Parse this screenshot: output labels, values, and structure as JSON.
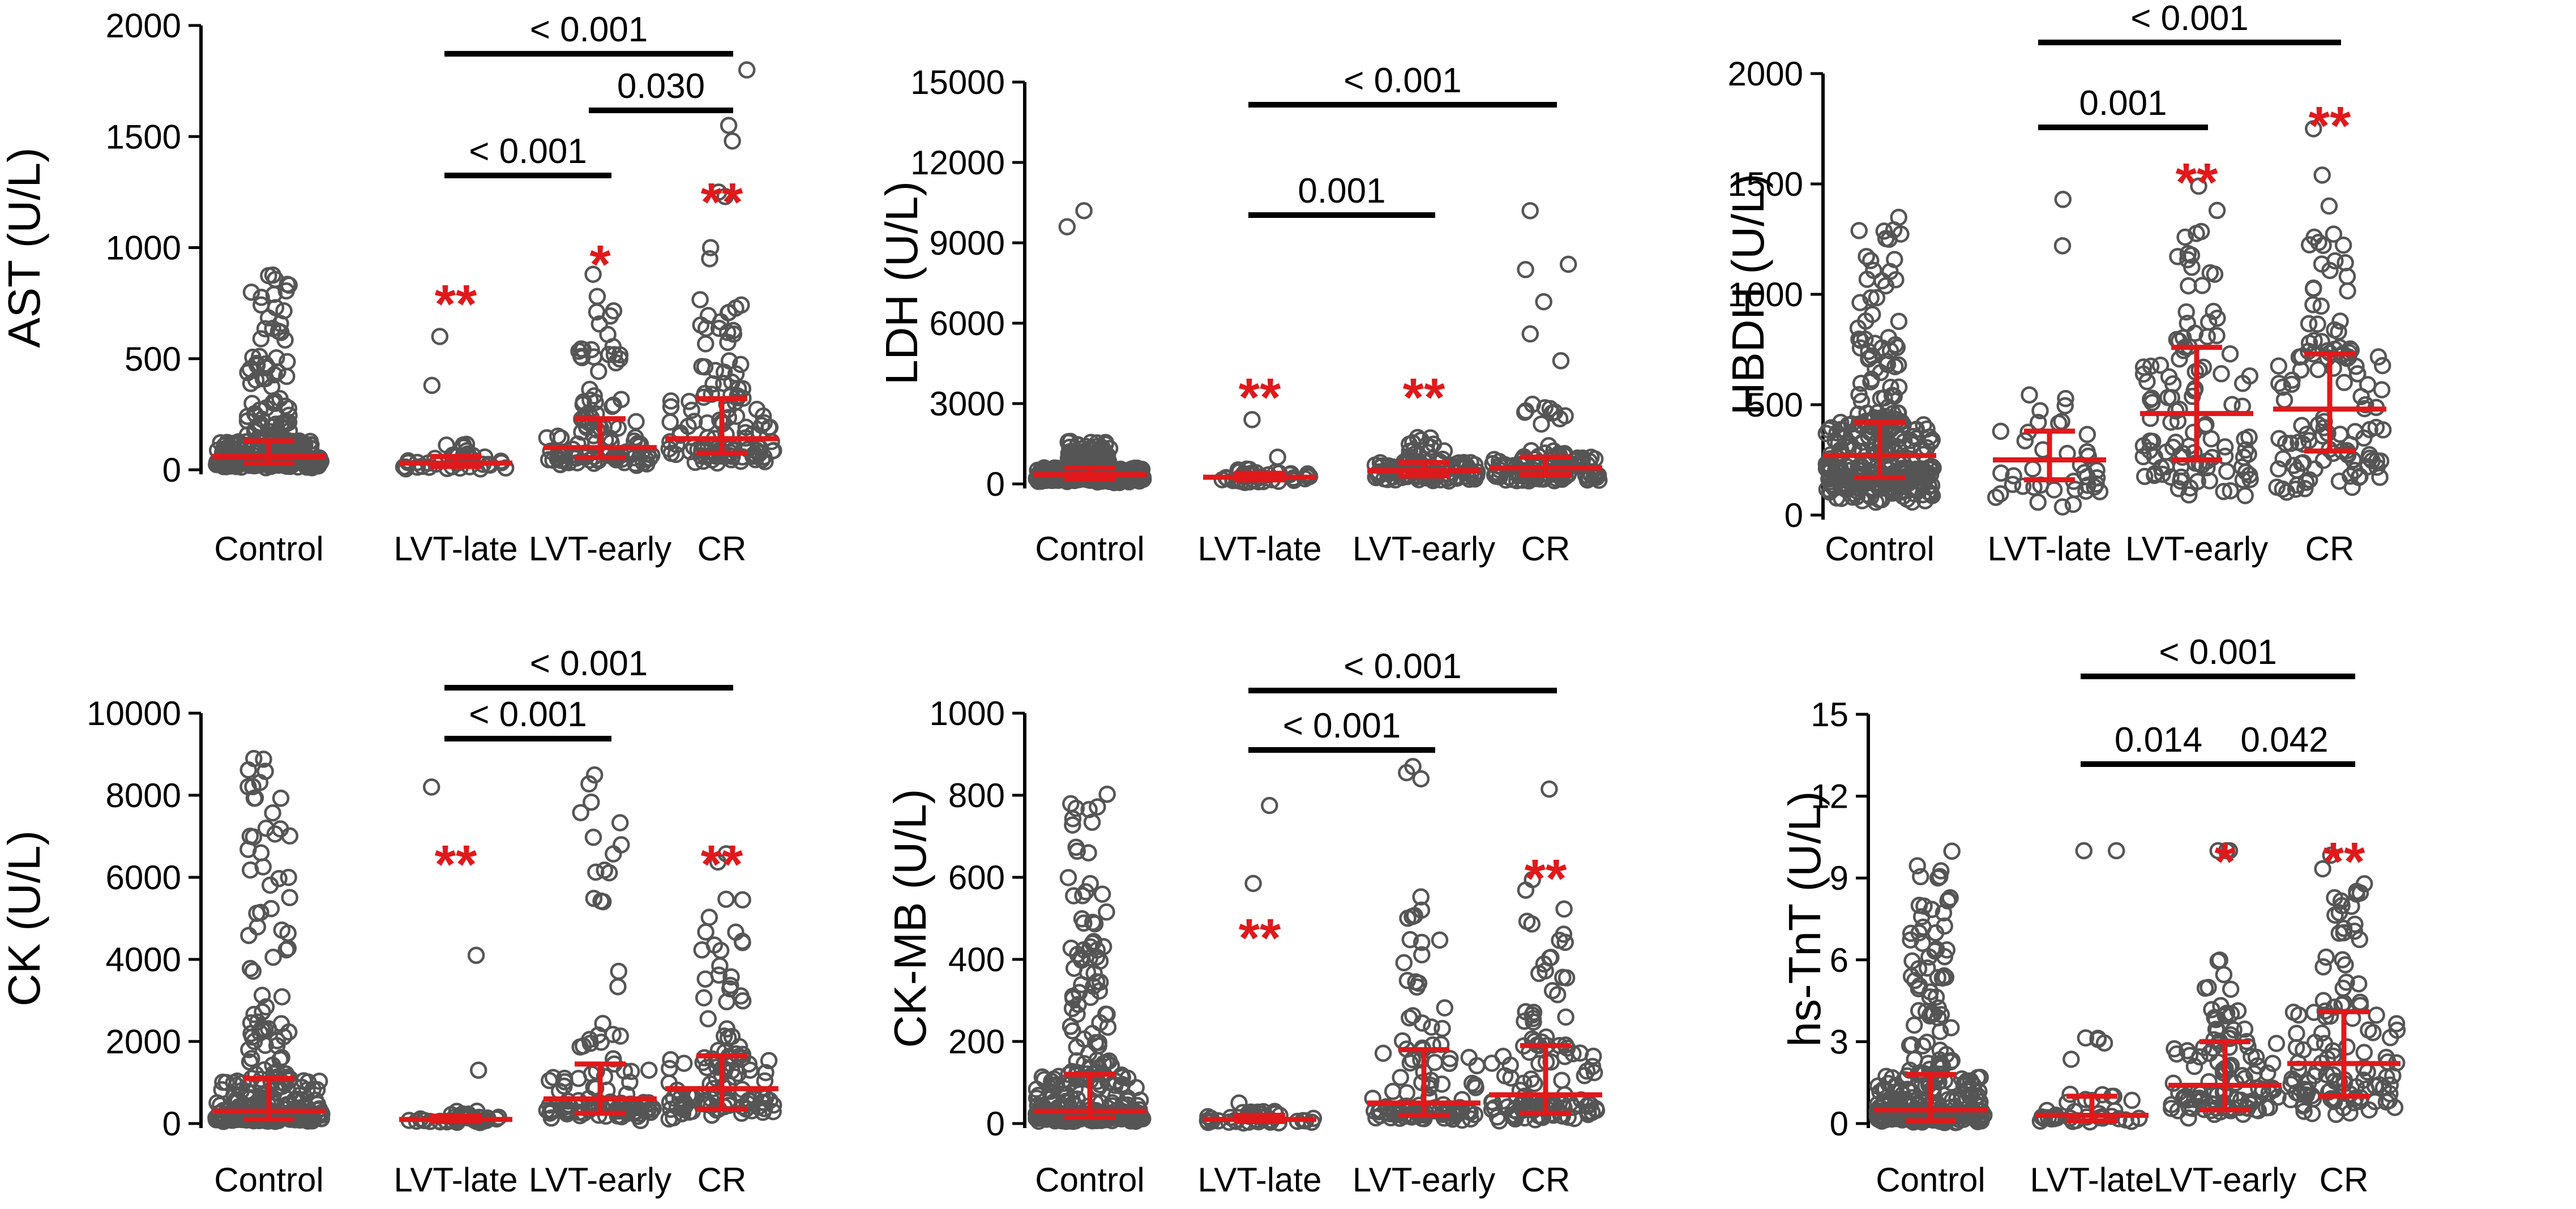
{
  "colors": {
    "dot": "#555555",
    "summary": "#e0191b",
    "stars": "#e0191b",
    "axis": "#000000"
  },
  "chart_data": [
    {
      "type": "scatter",
      "title": "",
      "ylabel": "AST (U/L)",
      "xlabel": "",
      "ylim": [
        0,
        2000
      ],
      "yticks": [
        0,
        500,
        1000,
        1500,
        2000
      ],
      "categories": [
        "Control",
        "LVT-late",
        "LVT-early",
        "CR"
      ],
      "groups": [
        {
          "name": "Control",
          "median": 60,
          "q1": 30,
          "q3": 130,
          "n": 320,
          "max": 880,
          "outliers": []
        },
        {
          "name": "LVT-late",
          "median": 30,
          "q1": 15,
          "q3": 60,
          "n": 40,
          "max": 120,
          "outliers": [
            600,
            380
          ]
        },
        {
          "name": "LVT-early",
          "median": 100,
          "q1": 55,
          "q3": 230,
          "n": 110,
          "max": 720,
          "outliers": [
            880,
            780
          ]
        },
        {
          "name": "CR",
          "median": 140,
          "q1": 75,
          "q3": 320,
          "n": 120,
          "max": 800,
          "outliers": [
            1800,
            1550,
            1480,
            1250,
            1230,
            1000,
            950
          ]
        }
      ],
      "stars": [
        "",
        "**",
        "*",
        "**"
      ],
      "comparisons": [
        {
          "from": "LVT-late",
          "to": "CR",
          "p": "< 0.001"
        },
        {
          "from": "LVT-early",
          "to": "CR",
          "p": "0.030"
        },
        {
          "from": "LVT-late",
          "to": "LVT-early",
          "p": "< 0.001"
        }
      ]
    },
    {
      "type": "scatter",
      "title": "",
      "ylabel": "LDH (U/L)",
      "xlabel": "",
      "ylim": [
        0,
        15000
      ],
      "yticks": [
        0,
        3000,
        6000,
        9000,
        12000,
        15000
      ],
      "categories": [
        "Control",
        "LVT-late",
        "LVT-early",
        "CR"
      ],
      "groups": [
        {
          "name": "Control",
          "median": 350,
          "q1": 200,
          "q3": 600,
          "n": 320,
          "max": 1600,
          "outliers": [
            10200,
            9600
          ]
        },
        {
          "name": "LVT-late",
          "median": 250,
          "q1": 150,
          "q3": 400,
          "n": 40,
          "max": 700,
          "outliers": [
            2400,
            1000
          ]
        },
        {
          "name": "LVT-early",
          "median": 500,
          "q1": 300,
          "q3": 800,
          "n": 110,
          "max": 1800,
          "outliers": []
        },
        {
          "name": "CR",
          "median": 600,
          "q1": 350,
          "q3": 1000,
          "n": 120,
          "max": 3000,
          "outliers": [
            10200,
            8200,
            8000,
            6800,
            5600,
            4600
          ]
        }
      ],
      "stars": [
        "",
        "**",
        "**",
        ""
      ],
      "comparisons": [
        {
          "from": "LVT-late",
          "to": "CR",
          "p": "< 0.001"
        },
        {
          "from": "LVT-late",
          "to": "LVT-early",
          "p": "0.001"
        }
      ]
    },
    {
      "type": "scatter",
      "title": "",
      "ylabel": "HBDH (U/L)",
      "xlabel": "",
      "ylim": [
        0,
        2000
      ],
      "yticks": [
        0,
        500,
        1000,
        1500,
        2000
      ],
      "categories": [
        "Control",
        "LVT-late",
        "LVT-early",
        "CR"
      ],
      "groups": [
        {
          "name": "Control",
          "median": 270,
          "q1": 170,
          "q3": 420,
          "n": 320,
          "max": 1350,
          "outliers": []
        },
        {
          "name": "LVT-late",
          "median": 250,
          "q1": 160,
          "q3": 380,
          "n": 40,
          "max": 620,
          "outliers": [
            1430,
            1220
          ]
        },
        {
          "name": "LVT-early",
          "median": 460,
          "q1": 250,
          "q3": 760,
          "n": 110,
          "max": 1300,
          "outliers": [
            1490,
            1380
          ]
        },
        {
          "name": "CR",
          "median": 480,
          "q1": 290,
          "q3": 730,
          "n": 120,
          "max": 1300,
          "outliers": [
            1750,
            1540,
            1400
          ]
        }
      ],
      "stars": [
        "",
        "",
        "**",
        "**"
      ],
      "comparisons": [
        {
          "from": "LVT-late",
          "to": "CR",
          "p": "< 0.001"
        },
        {
          "from": "LVT-late",
          "to": "LVT-early",
          "p": "0.001"
        }
      ]
    },
    {
      "type": "scatter",
      "title": "",
      "ylabel": "CK (U/L)",
      "xlabel": "",
      "ylim": [
        0,
        10000
      ],
      "yticks": [
        0,
        2000,
        4000,
        6000,
        8000,
        10000
      ],
      "categories": [
        "Control",
        "LVT-late",
        "LVT-early",
        "CR"
      ],
      "groups": [
        {
          "name": "Control",
          "median": 300,
          "q1": 100,
          "q3": 1100,
          "n": 320,
          "max": 9100,
          "outliers": []
        },
        {
          "name": "LVT-late",
          "median": 100,
          "q1": 50,
          "q3": 180,
          "n": 40,
          "max": 300,
          "outliers": [
            8200,
            4100,
            1300
          ]
        },
        {
          "name": "LVT-early",
          "median": 600,
          "q1": 250,
          "q3": 1450,
          "n": 110,
          "max": 8800,
          "outliers": []
        },
        {
          "name": "CR",
          "median": 850,
          "q1": 350,
          "q3": 1650,
          "n": 120,
          "max": 6600,
          "outliers": []
        }
      ],
      "stars": [
        "",
        "**",
        "",
        "**"
      ],
      "comparisons": [
        {
          "from": "LVT-late",
          "to": "CR",
          "p": "< 0.001"
        },
        {
          "from": "LVT-late",
          "to": "LVT-early",
          "p": "< 0.001"
        }
      ]
    },
    {
      "type": "scatter",
      "title": "",
      "ylabel": "CK-MB (U/L)",
      "xlabel": "",
      "ylim": [
        0,
        1000
      ],
      "yticks": [
        0,
        200,
        400,
        600,
        800,
        1000
      ],
      "categories": [
        "Control",
        "LVT-late",
        "LVT-early",
        "CR"
      ],
      "groups": [
        {
          "name": "Control",
          "median": 30,
          "q1": 15,
          "q3": 120,
          "n": 320,
          "max": 810,
          "outliers": []
        },
        {
          "name": "LVT-late",
          "median": 10,
          "q1": 5,
          "q3": 20,
          "n": 40,
          "max": 30,
          "outliers": [
            775,
            585,
            50
          ]
        },
        {
          "name": "LVT-early",
          "median": 50,
          "q1": 20,
          "q3": 180,
          "n": 110,
          "max": 600,
          "outliers": [
            870,
            855,
            840
          ]
        },
        {
          "name": "CR",
          "median": 70,
          "q1": 25,
          "q3": 190,
          "n": 120,
          "max": 620,
          "outliers": [
            815
          ]
        }
      ],
      "stars": [
        "",
        "**",
        "",
        "**"
      ],
      "comparisons": [
        {
          "from": "LVT-late",
          "to": "CR",
          "p": "< 0.001"
        },
        {
          "from": "LVT-late",
          "to": "LVT-early",
          "p": "< 0.001"
        }
      ]
    },
    {
      "type": "scatter",
      "title": "",
      "ylabel": "hs-TnT (U/L)",
      "xlabel": "",
      "ylim": [
        0,
        15
      ],
      "yticks": [
        0,
        3,
        6,
        9,
        12,
        15
      ],
      "categories": [
        "Control",
        "LVT-late",
        "LVT-early",
        "CR"
      ],
      "groups": [
        {
          "name": "Control",
          "median": 0.5,
          "q1": 0.1,
          "q3": 1.8,
          "n": 320,
          "max": 10,
          "outliers": []
        },
        {
          "name": "LVT-late",
          "median": 0.3,
          "q1": 0.1,
          "q3": 1.0,
          "n": 40,
          "max": 3.6,
          "outliers": [
            10,
            10
          ]
        },
        {
          "name": "LVT-early",
          "median": 1.4,
          "q1": 0.5,
          "q3": 3.0,
          "n": 110,
          "max": 6.5,
          "outliers": [
            10,
            10,
            10
          ]
        },
        {
          "name": "CR",
          "median": 2.2,
          "q1": 1.0,
          "q3": 4.1,
          "n": 120,
          "max": 10,
          "outliers": []
        }
      ],
      "stars": [
        "",
        "",
        "*",
        "**"
      ],
      "comparisons": [
        {
          "from": "LVT-late",
          "to": "CR",
          "p": "< 0.001"
        },
        {
          "from": "LVT-late",
          "to": "LVT-early",
          "p": "0.014"
        },
        {
          "from": "LVT-early",
          "to": "CR",
          "p": "0.042"
        }
      ]
    }
  ]
}
